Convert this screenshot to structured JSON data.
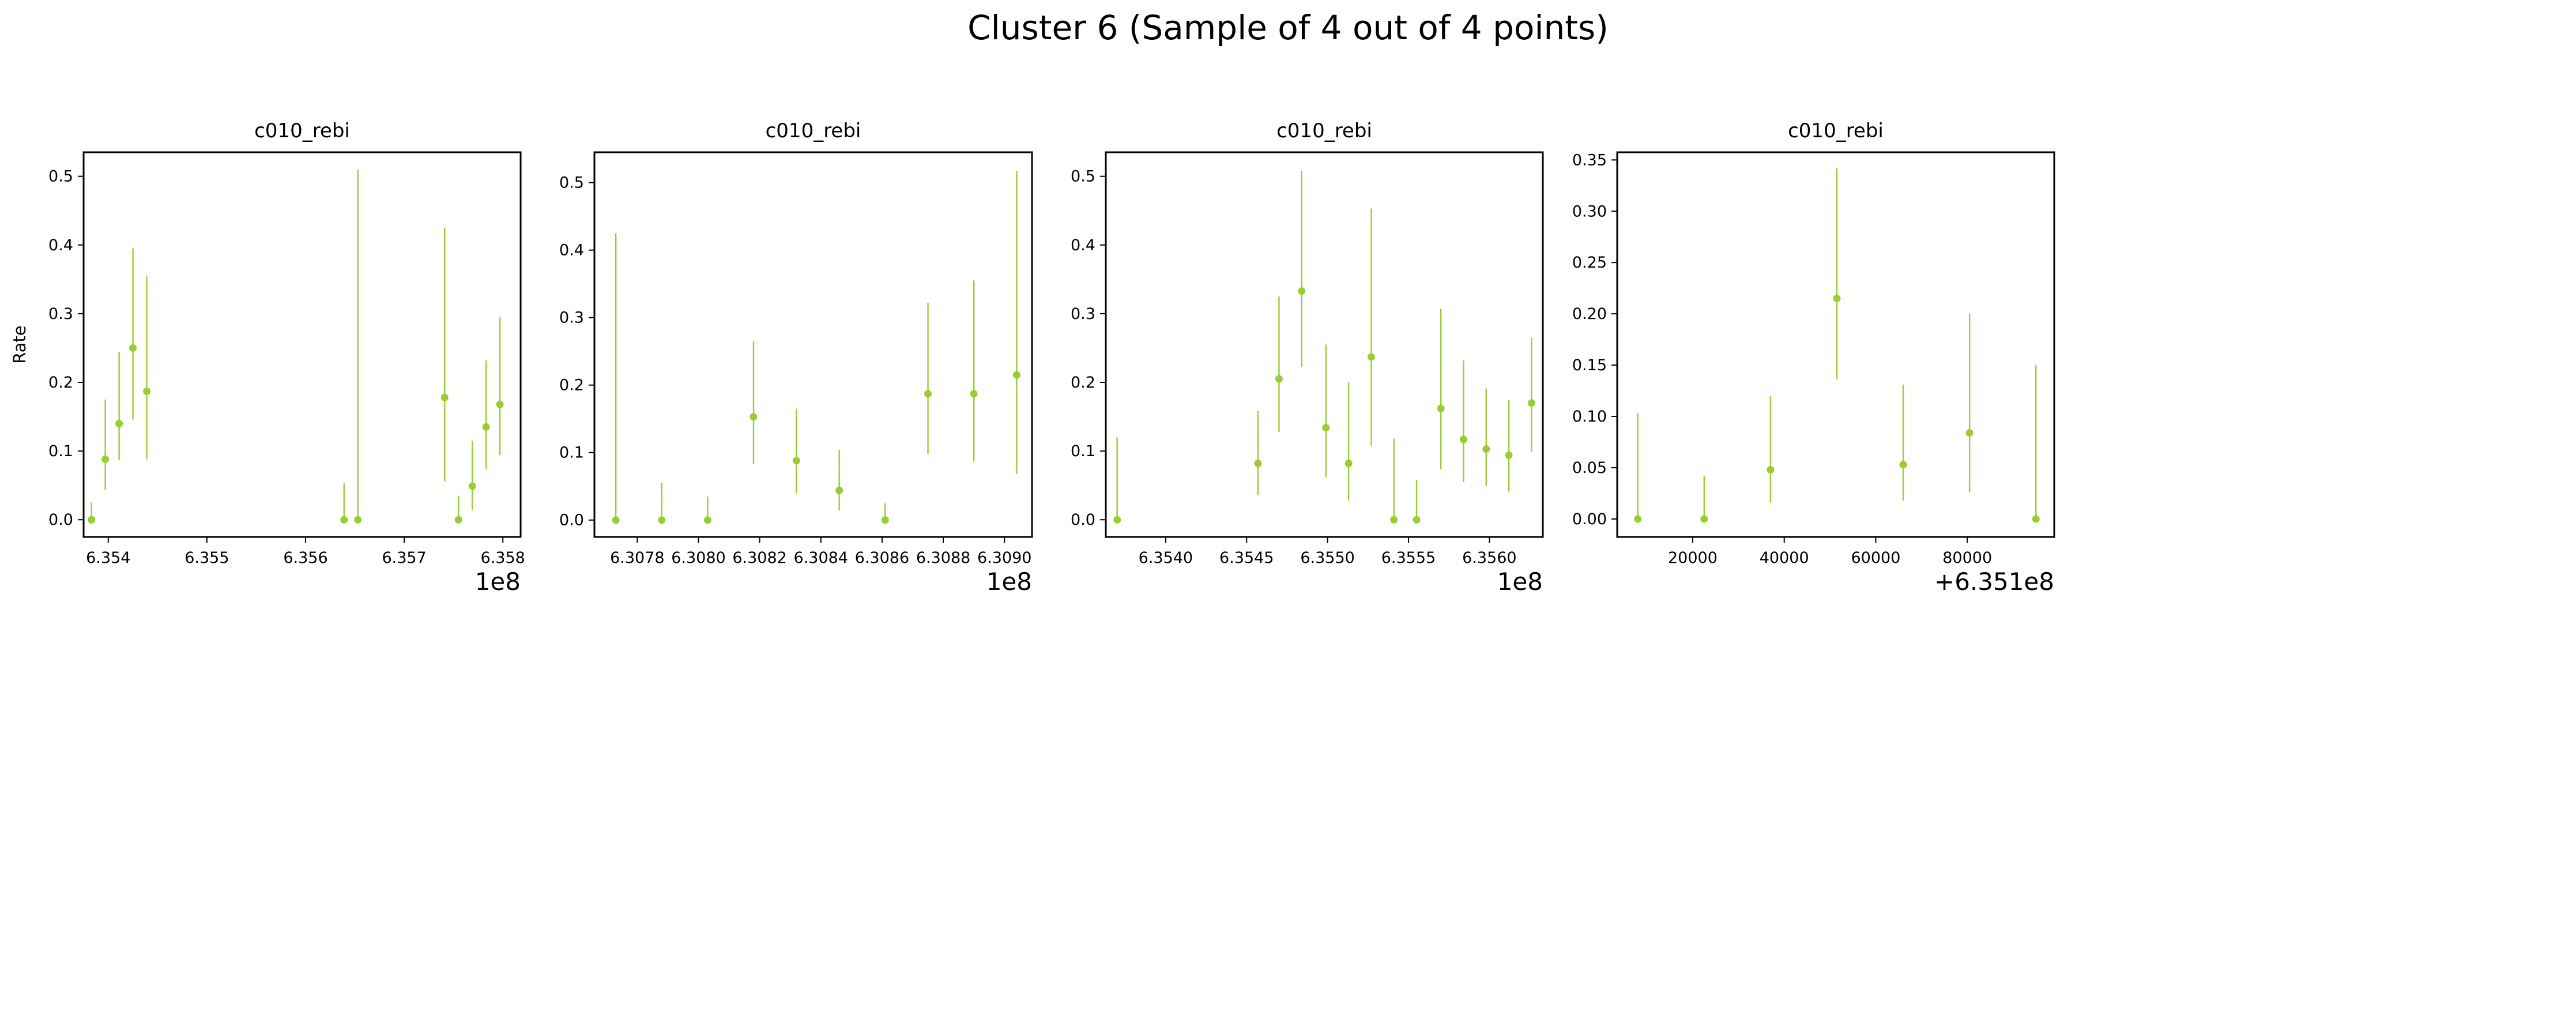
{
  "figure": {
    "title": "Cluster 6 (Sample of 4 out of 4 points)"
  },
  "colors": {
    "series": "#9acd32",
    "axes": "#000000",
    "background": "#ffffff"
  },
  "chart_data": [
    {
      "type": "scatter",
      "title": "c010_rebi",
      "xlabel": "",
      "ylabel": "Rate",
      "x_offset_label": "1e8",
      "xlim": [
        635375000,
        635818000
      ],
      "ylim": [
        -0.025,
        0.535
      ],
      "xticks": [
        635400000,
        635500000,
        635600000,
        635700000,
        635800000
      ],
      "xtick_labels": [
        "6.354",
        "6.355",
        "6.356",
        "6.357",
        "6.358"
      ],
      "yticks": [
        0.0,
        0.1,
        0.2,
        0.3,
        0.4,
        0.5
      ],
      "ytick_labels": [
        "0.0",
        "0.1",
        "0.2",
        "0.3",
        "0.4",
        "0.5"
      ],
      "grid": false,
      "points": [
        {
          "x": 635383000,
          "y": 0.0,
          "ylo": 0.0,
          "yhi": 0.025
        },
        {
          "x": 635397000,
          "y": 0.088,
          "ylo": 0.043,
          "yhi": 0.175
        },
        {
          "x": 635411000,
          "y": 0.14,
          "ylo": 0.087,
          "yhi": 0.244
        },
        {
          "x": 635425000,
          "y": 0.25,
          "ylo": 0.146,
          "yhi": 0.395
        },
        {
          "x": 635439000,
          "y": 0.187,
          "ylo": 0.088,
          "yhi": 0.355
        },
        {
          "x": 635639000,
          "y": 0.0,
          "ylo": 0.0,
          "yhi": 0.053
        },
        {
          "x": 635653000,
          "y": 0.0,
          "ylo": 0.0,
          "yhi": 0.51
        },
        {
          "x": 635741000,
          "y": 0.178,
          "ylo": 0.056,
          "yhi": 0.425
        },
        {
          "x": 635755000,
          "y": 0.0,
          "ylo": 0.0,
          "yhi": 0.035
        },
        {
          "x": 635769000,
          "y": 0.049,
          "ylo": 0.014,
          "yhi": 0.115
        },
        {
          "x": 635783000,
          "y": 0.135,
          "ylo": 0.074,
          "yhi": 0.232
        },
        {
          "x": 635797000,
          "y": 0.168,
          "ylo": 0.094,
          "yhi": 0.295
        }
      ]
    },
    {
      "type": "scatter",
      "title": "c010_rebi",
      "xlabel": "",
      "ylabel": "",
      "x_offset_label": "1e8",
      "xlim": [
        630766000,
        630909000
      ],
      "ylim": [
        -0.025,
        0.545
      ],
      "xticks": [
        630780000,
        630800000,
        630820000,
        630840000,
        630860000,
        630880000,
        630900000
      ],
      "xtick_labels": [
        "6.3078",
        "6.3080",
        "6.3082",
        "6.3084",
        "6.3086",
        "6.3088",
        "6.3090"
      ],
      "yticks": [
        0.0,
        0.1,
        0.2,
        0.3,
        0.4,
        0.5
      ],
      "ytick_labels": [
        "0.0",
        "0.1",
        "0.2",
        "0.3",
        "0.4",
        "0.5"
      ],
      "grid": false,
      "points": [
        {
          "x": 630773000,
          "y": 0.0,
          "ylo": 0.0,
          "yhi": 0.425
        },
        {
          "x": 630788000,
          "y": 0.0,
          "ylo": 0.0,
          "yhi": 0.055
        },
        {
          "x": 630803000,
          "y": 0.0,
          "ylo": 0.0,
          "yhi": 0.035
        },
        {
          "x": 630818000,
          "y": 0.153,
          "ylo": 0.083,
          "yhi": 0.265
        },
        {
          "x": 630832000,
          "y": 0.088,
          "ylo": 0.04,
          "yhi": 0.165
        },
        {
          "x": 630846000,
          "y": 0.044,
          "ylo": 0.014,
          "yhi": 0.104
        },
        {
          "x": 630861000,
          "y": 0.0,
          "ylo": 0.0,
          "yhi": 0.025
        },
        {
          "x": 630875000,
          "y": 0.187,
          "ylo": 0.098,
          "yhi": 0.322
        },
        {
          "x": 630890000,
          "y": 0.187,
          "ylo": 0.087,
          "yhi": 0.355
        },
        {
          "x": 630904000,
          "y": 0.215,
          "ylo": 0.068,
          "yhi": 0.517
        }
      ]
    },
    {
      "type": "scatter",
      "title": "c010_rebi",
      "xlabel": "",
      "ylabel": "",
      "x_offset_label": "1e8",
      "xlim": [
        635363000,
        635633000
      ],
      "ylim": [
        -0.025,
        0.535
      ],
      "xticks": [
        635400000,
        635450000,
        635500000,
        635550000,
        635600000
      ],
      "xtick_labels": [
        "6.3540",
        "6.3545",
        "6.3550",
        "6.3555",
        "6.3560"
      ],
      "yticks": [
        0.0,
        0.1,
        0.2,
        0.3,
        0.4,
        0.5
      ],
      "ytick_labels": [
        "0.0",
        "0.1",
        "0.2",
        "0.3",
        "0.4",
        "0.5"
      ],
      "grid": false,
      "points": [
        {
          "x": 635370000,
          "y": 0.0,
          "ylo": 0.0,
          "yhi": 0.12
        },
        {
          "x": 635457000,
          "y": 0.082,
          "ylo": 0.036,
          "yhi": 0.158
        },
        {
          "x": 635470000,
          "y": 0.205,
          "ylo": 0.128,
          "yhi": 0.325
        },
        {
          "x": 635484000,
          "y": 0.333,
          "ylo": 0.222,
          "yhi": 0.508
        },
        {
          "x": 635499000,
          "y": 0.134,
          "ylo": 0.062,
          "yhi": 0.255
        },
        {
          "x": 635513000,
          "y": 0.082,
          "ylo": 0.028,
          "yhi": 0.2
        },
        {
          "x": 635527000,
          "y": 0.237,
          "ylo": 0.108,
          "yhi": 0.453
        },
        {
          "x": 635541000,
          "y": 0.0,
          "ylo": 0.0,
          "yhi": 0.118
        },
        {
          "x": 635555000,
          "y": 0.0,
          "ylo": 0.0,
          "yhi": 0.058
        },
        {
          "x": 635570000,
          "y": 0.162,
          "ylo": 0.074,
          "yhi": 0.307
        },
        {
          "x": 635584000,
          "y": 0.117,
          "ylo": 0.055,
          "yhi": 0.232
        },
        {
          "x": 635598000,
          "y": 0.103,
          "ylo": 0.049,
          "yhi": 0.191
        },
        {
          "x": 635612000,
          "y": 0.094,
          "ylo": 0.041,
          "yhi": 0.174
        },
        {
          "x": 635626000,
          "y": 0.17,
          "ylo": 0.099,
          "yhi": 0.265
        }
      ]
    },
    {
      "type": "scatter",
      "title": "c010_rebi",
      "xlabel": "",
      "ylabel": "",
      "x_offset_label": "+6.351e8",
      "xlim": [
        635103500,
        635199000
      ],
      "ylim": [
        -0.0175,
        0.3575
      ],
      "xticks": [
        635120000,
        635140000,
        635160000,
        635180000
      ],
      "xtick_labels": [
        "20000",
        "40000",
        "60000",
        "80000"
      ],
      "yticks": [
        0.0,
        0.05,
        0.1,
        0.15,
        0.2,
        0.25,
        0.3,
        0.35
      ],
      "ytick_labels": [
        "0.00",
        "0.05",
        "0.10",
        "0.15",
        "0.20",
        "0.25",
        "0.30",
        "0.35"
      ],
      "grid": false,
      "points": [
        {
          "x": 635108000,
          "y": 0.0,
          "ylo": 0.0,
          "yhi": 0.103
        },
        {
          "x": 635122500,
          "y": 0.0,
          "ylo": 0.0,
          "yhi": 0.042
        },
        {
          "x": 635137000,
          "y": 0.048,
          "ylo": 0.016,
          "yhi": 0.12
        },
        {
          "x": 635151500,
          "y": 0.215,
          "ylo": 0.136,
          "yhi": 0.342
        },
        {
          "x": 635166000,
          "y": 0.053,
          "ylo": 0.018,
          "yhi": 0.131
        },
        {
          "x": 635180500,
          "y": 0.084,
          "ylo": 0.026,
          "yhi": 0.2
        },
        {
          "x": 635195000,
          "y": 0.0,
          "ylo": 0.0,
          "yhi": 0.15
        }
      ]
    }
  ]
}
